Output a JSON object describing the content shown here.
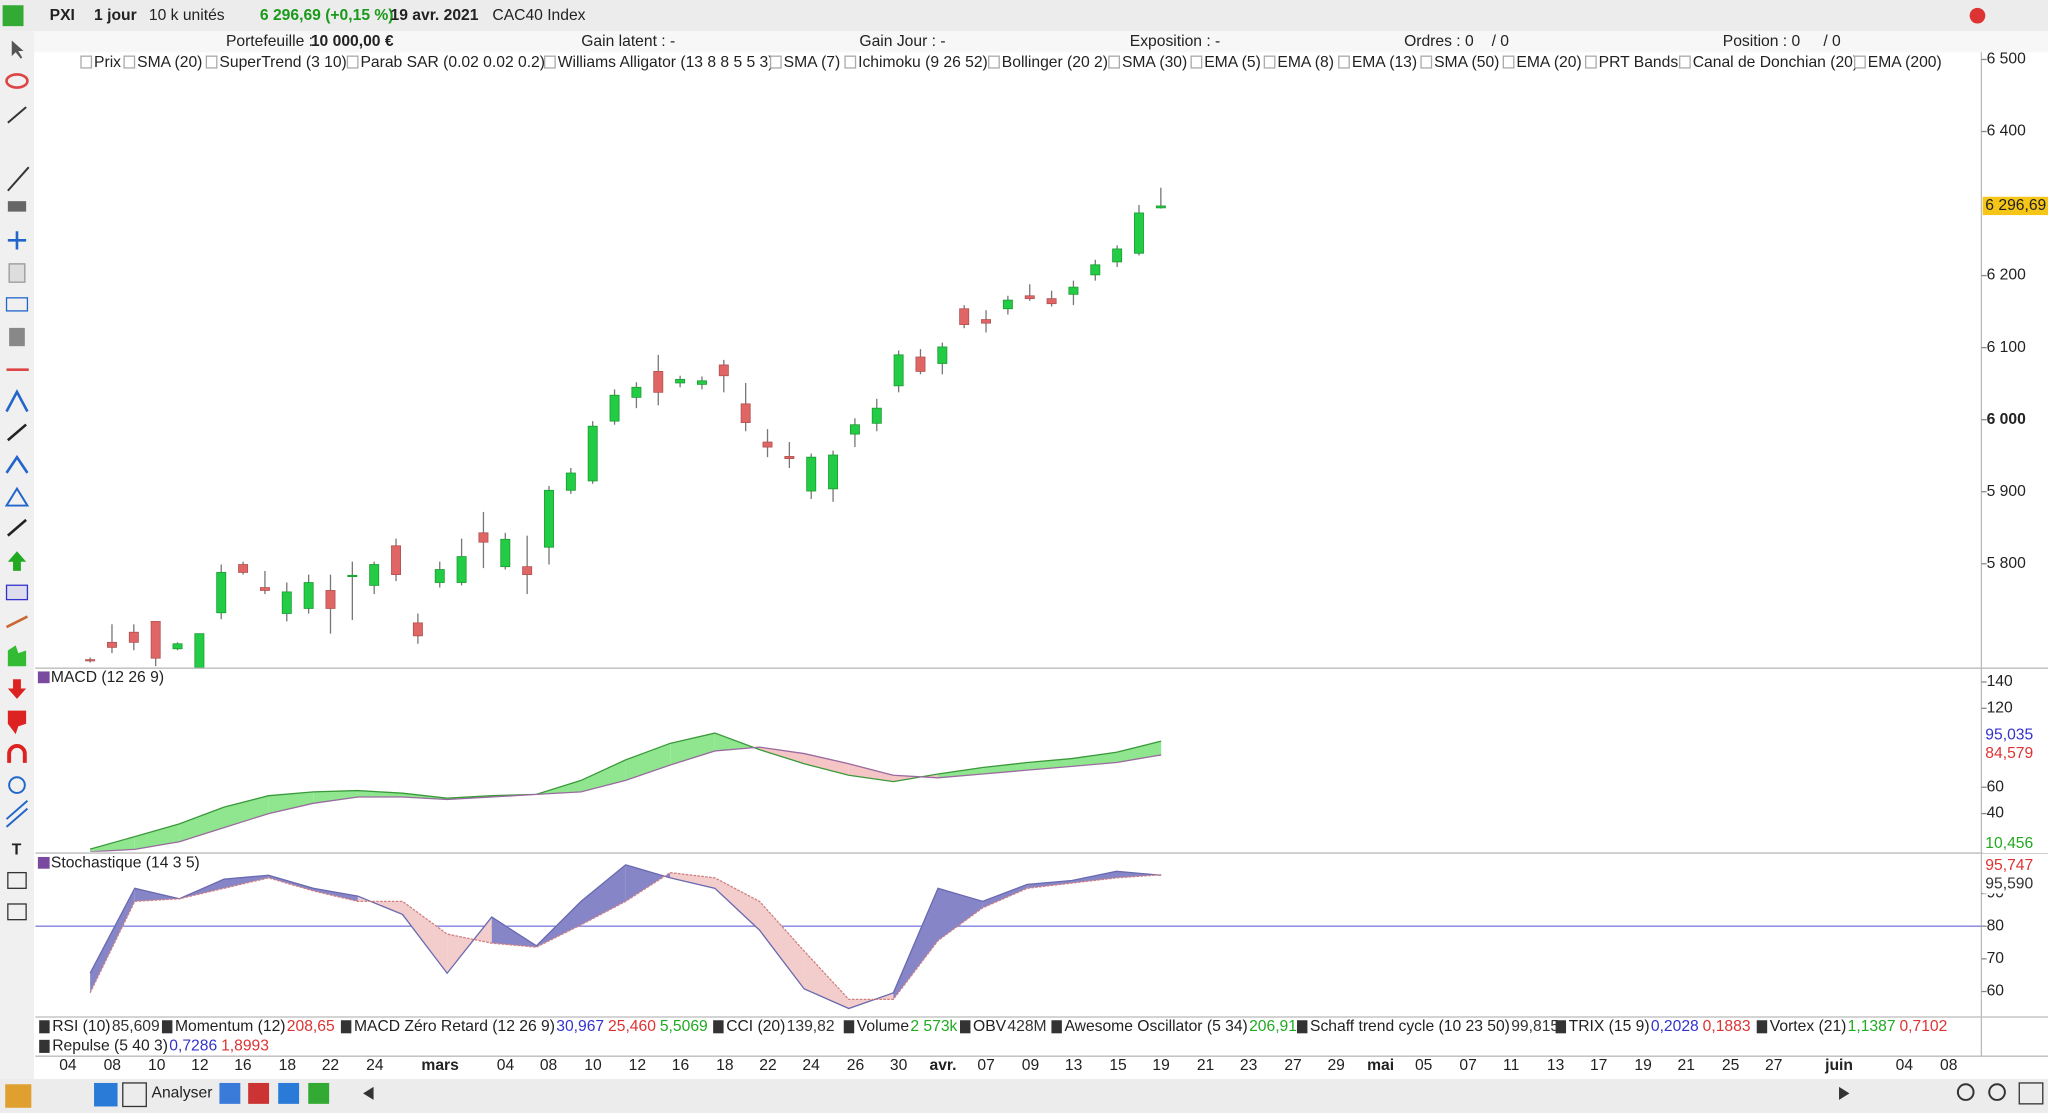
{
  "toolbar": {
    "symbol": "PXI",
    "period": "1 jour",
    "units": "10 k unités",
    "quote": "6 296,69 (+0,15 %)",
    "date": "19 avr. 2021",
    "name": "CAC40 Index"
  },
  "portfolio": {
    "label": "Portefeuille :",
    "value": "10 000,00 €",
    "gain_latent": "Gain latent : -",
    "gain_jour": "Gain Jour : -",
    "exposition": "Exposition : -",
    "ordres": "Ordres : 0",
    "ordres_2": "/ 0",
    "position": "Position : 0",
    "position_2": "/ 0"
  },
  "indicators": [
    "Prix",
    "SMA (20)",
    "SuperTrend (3 10)",
    "Parab SAR (0.02 0.02 0.2)",
    "Williams Alligator (13 8 8 5 5 3)",
    "SMA (7)",
    "Ichimoku (9 26 52)",
    "Bollinger (20 2)",
    "SMA (30)",
    "EMA (5)",
    "EMA (8)",
    "EMA (13)",
    "SMA (50)",
    "EMA (20)",
    "PRT Bands",
    "Canal de Donchian (20)",
    "EMA (200)"
  ],
  "chart_data": [
    {
      "type": "candlestick",
      "up_color": "#22cc44",
      "down_color": "#e06666",
      "last_label": "6 296,69",
      "ylim": [
        5656,
        6510
      ],
      "yticks": [
        {
          "value": 6500,
          "label": "6 500"
        },
        {
          "value": 6400,
          "label": "6 400"
        },
        {
          "value": 6200,
          "label": "6 200"
        },
        {
          "value": 6100,
          "label": "6 100"
        },
        {
          "value": 6000,
          "label": "6 000"
        },
        {
          "value": 5900,
          "label": "5 900"
        },
        {
          "value": 5800,
          "label": "5 800"
        }
      ],
      "x_labels": [
        "04",
        "08",
        "10",
        "12",
        "16",
        "18",
        "22",
        "24",
        "mars",
        "04",
        "08",
        "10",
        "12",
        "16",
        "18",
        "22",
        "24",
        "26",
        "30",
        "avr.",
        "07",
        "09",
        "13",
        "15",
        "19",
        "21",
        "23",
        "27",
        "29",
        "mai",
        "05",
        "07",
        "11",
        "13",
        "17",
        "19",
        "21",
        "25",
        "27",
        "juin",
        "04",
        "08"
      ],
      "candles": [
        {
          "open": 5667,
          "high": 5670,
          "low": 5663,
          "close": 5666
        },
        {
          "open": 5691,
          "high": 5716,
          "low": 5676,
          "close": 5684
        },
        {
          "open": 5705,
          "high": 5716,
          "low": 5680,
          "close": 5691
        },
        {
          "open": 5720,
          "high": 5720,
          "low": 5658,
          "close": 5669
        },
        {
          "open": 5682,
          "high": 5691,
          "low": 5680,
          "close": 5689
        },
        {
          "open": 5656,
          "high": 5703,
          "low": 5656,
          "close": 5703
        },
        {
          "open": 5732,
          "high": 5799,
          "low": 5723,
          "close": 5788
        },
        {
          "open": 5799,
          "high": 5803,
          "low": 5785,
          "close": 5788
        },
        {
          "open": 5767,
          "high": 5790,
          "low": 5758,
          "close": 5763
        },
        {
          "open": 5731,
          "high": 5774,
          "low": 5720,
          "close": 5761
        },
        {
          "open": 5738,
          "high": 5785,
          "low": 5731,
          "close": 5774
        },
        {
          "open": 5763,
          "high": 5785,
          "low": 5703,
          "close": 5738
        },
        {
          "open": 5783,
          "high": 5803,
          "low": 5722,
          "close": 5784
        },
        {
          "open": 5770,
          "high": 5803,
          "low": 5758,
          "close": 5799
        },
        {
          "open": 5825,
          "high": 5835,
          "low": 5776,
          "close": 5785
        },
        {
          "open": 5718,
          "high": 5731,
          "low": 5689,
          "close": 5700
        },
        {
          "open": 5774,
          "high": 5803,
          "low": 5767,
          "close": 5792
        },
        {
          "open": 5774,
          "high": 5835,
          "low": 5770,
          "close": 5810
        },
        {
          "open": 5843,
          "high": 5872,
          "low": 5794,
          "close": 5830
        },
        {
          "open": 5796,
          "high": 5843,
          "low": 5792,
          "close": 5834
        },
        {
          "open": 5796,
          "high": 5839,
          "low": 5758,
          "close": 5785
        },
        {
          "open": 5823,
          "high": 5908,
          "low": 5799,
          "close": 5902
        },
        {
          "open": 5902,
          "high": 5933,
          "low": 5897,
          "close": 5926
        },
        {
          "open": 5915,
          "high": 5998,
          "low": 5911,
          "close": 5991
        },
        {
          "open": 5998,
          "high": 6042,
          "low": 5993,
          "close": 6034
        },
        {
          "open": 6031,
          "high": 6052,
          "low": 6016,
          "close": 6045
        },
        {
          "open": 6067,
          "high": 6090,
          "low": 6020,
          "close": 6038
        },
        {
          "open": 6051,
          "high": 6061,
          "low": 6045,
          "close": 6056
        },
        {
          "open": 6049,
          "high": 6060,
          "low": 6042,
          "close": 6054
        },
        {
          "open": 6076,
          "high": 6083,
          "low": 6038,
          "close": 6061
        },
        {
          "open": 6022,
          "high": 6051,
          "low": 5984,
          "close": 5996
        },
        {
          "open": 5969,
          "high": 5987,
          "low": 5948,
          "close": 5962
        },
        {
          "open": 5949,
          "high": 5969,
          "low": 5933,
          "close": 5946
        },
        {
          "open": 5901,
          "high": 5953,
          "low": 5890,
          "close": 5948
        },
        {
          "open": 5904,
          "high": 5957,
          "low": 5886,
          "close": 5951
        },
        {
          "open": 5980,
          "high": 6002,
          "low": 5962,
          "close": 5993
        },
        {
          "open": 5995,
          "high": 6029,
          "low": 5984,
          "close": 6016
        },
        {
          "open": 6047,
          "high": 6096,
          "low": 6038,
          "close": 6090
        },
        {
          "open": 6087,
          "high": 6098,
          "low": 6063,
          "close": 6067
        },
        {
          "open": 6078,
          "high": 6107,
          "low": 6063,
          "close": 6101
        },
        {
          "open": 6154,
          "high": 6159,
          "low": 6127,
          "close": 6132
        },
        {
          "open": 6139,
          "high": 6152,
          "low": 6121,
          "close": 6134
        },
        {
          "open": 6154,
          "high": 6172,
          "low": 6146,
          "close": 6166
        },
        {
          "open": 6172,
          "high": 6188,
          "low": 6165,
          "close": 6168
        },
        {
          "open": 6168,
          "high": 6179,
          "low": 6157,
          "close": 6161
        },
        {
          "open": 6174,
          "high": 6193,
          "low": 6159,
          "close": 6184
        },
        {
          "open": 6201,
          "high": 6222,
          "low": 6193,
          "close": 6215
        },
        {
          "open": 6219,
          "high": 6242,
          "low": 6212,
          "close": 6237
        },
        {
          "open": 6231,
          "high": 6298,
          "low": 6228,
          "close": 6287
        },
        {
          "open": 6294,
          "high": 6322,
          "low": 6293,
          "close": 6296.69
        }
      ]
    },
    {
      "type": "line",
      "title": "MACD (12 26 9)",
      "ylim": [
        11,
        150
      ],
      "yticks": [
        140,
        120,
        60,
        40
      ],
      "fill_up": "#8fe68f",
      "fill_down": "#f5c4c4",
      "series": [
        {
          "color": "#3a9a3a",
          "values": [
            13,
            22.5,
            32.2,
            44.9,
            53.6,
            56.5,
            57.5,
            55.5,
            51.7,
            53.6,
            54.6,
            65.2,
            80.8,
            93.4,
            101.2,
            88.6,
            77.9,
            69.1,
            64.3,
            70.1,
            75,
            78.8,
            81.8,
            86.6,
            95.035
          ]
        },
        {
          "color": "#9a6aa0",
          "values": [
            11,
            12.8,
            18.6,
            29.3,
            40,
            47.8,
            52.6,
            52.6,
            50.7,
            52.6,
            54.6,
            56.5,
            65.2,
            76.9,
            87.6,
            90.5,
            85.6,
            77.9,
            69.1,
            67.2,
            70.1,
            73,
            75.9,
            78.8,
            84.579
          ]
        }
      ],
      "last_labels": [
        {
          "text": "95,035",
          "color": "#3333cc"
        },
        {
          "text": "84,579",
          "color": "#dd3333"
        },
        {
          "text": "10,456",
          "color": "#22aa22"
        }
      ]
    },
    {
      "type": "line",
      "title": "Stochastique (14 3 5)",
      "ylim": [
        52.4,
        102
      ],
      "yticks": [
        90,
        80,
        70,
        60
      ],
      "level_line": 80,
      "level_color": "#8080e0",
      "fill_up": "#8585c8",
      "fill_down": "#f3cccc",
      "series": [
        {
          "color": "#6a6ab0",
          "values": [
            65.6,
            91.6,
            88.4,
            94.4,
            95.6,
            91.6,
            89.2,
            83.6,
            65.6,
            82.8,
            74,
            87.6,
            98.8,
            94.8,
            91.6,
            78.8,
            60.8,
            54.8,
            59.6,
            91.6,
            87.6,
            92.8,
            94,
            96.8,
            95.59
          ]
        },
        {
          "color": "#d08080",
          "values": [
            59.6,
            87.6,
            88.4,
            91.6,
            94.8,
            90.8,
            87.6,
            87.6,
            77.6,
            74.8,
            73.6,
            80.4,
            87.6,
            96.4,
            94.8,
            87.6,
            72.4,
            57.6,
            57.6,
            75.6,
            85.6,
            91.6,
            93.2,
            94.8,
            95.747
          ]
        }
      ],
      "last_labels": [
        {
          "text": "95,747",
          "color": "#dd3333"
        },
        {
          "text": "95,590",
          "color": "#333333"
        }
      ]
    }
  ],
  "strip": [
    {
      "name": "RSI (10)",
      "values": [
        {
          "text": "85,609",
          "color": "#333333"
        }
      ]
    },
    {
      "name": "Momentum (12)",
      "values": [
        {
          "text": "208,65",
          "color": "#dd3333"
        }
      ]
    },
    {
      "name": "MACD Zéro Retard (12 26 9)",
      "values": [
        {
          "text": "30,967",
          "color": "#3333cc"
        },
        {
          "text": "25,460",
          "color": "#dd3333"
        },
        {
          "text": "5,5069",
          "color": "#22aa22"
        }
      ]
    },
    {
      "name": "CCI (20)",
      "values": [
        {
          "text": "139,82",
          "color": "#333333"
        }
      ]
    },
    {
      "name": "Volume",
      "values": [
        {
          "text": "2 573k",
          "color": "#22aa22"
        }
      ]
    },
    {
      "name": "OBV",
      "values": [
        {
          "text": "428M",
          "color": "#333333"
        }
      ]
    },
    {
      "name": "Awesome Oscillator (5 34)",
      "values": [
        {
          "text": "206,91",
          "color": "#22aa22"
        }
      ]
    },
    {
      "name": "Schaff trend cycle (10 23 50)",
      "values": [
        {
          "text": "99,815",
          "color": "#333333"
        }
      ]
    },
    {
      "name": "TRIX (15 9)",
      "values": [
        {
          "text": "0,2028",
          "color": "#3333cc"
        },
        {
          "text": "0,1883",
          "color": "#dd3333"
        }
      ]
    },
    {
      "name": "Vortex (21)",
      "values": [
        {
          "text": "1,1387",
          "color": "#22aa22"
        },
        {
          "text": "0,7102",
          "color": "#dd3333"
        }
      ]
    },
    {
      "name": "Repulse (5 40 3)",
      "values": [
        {
          "text": "0,7286",
          "color": "#3333cc"
        },
        {
          "text": "1,8993",
          "color": "#dd3333"
        }
      ]
    }
  ],
  "bottom": {
    "analyze": "Analyser"
  }
}
